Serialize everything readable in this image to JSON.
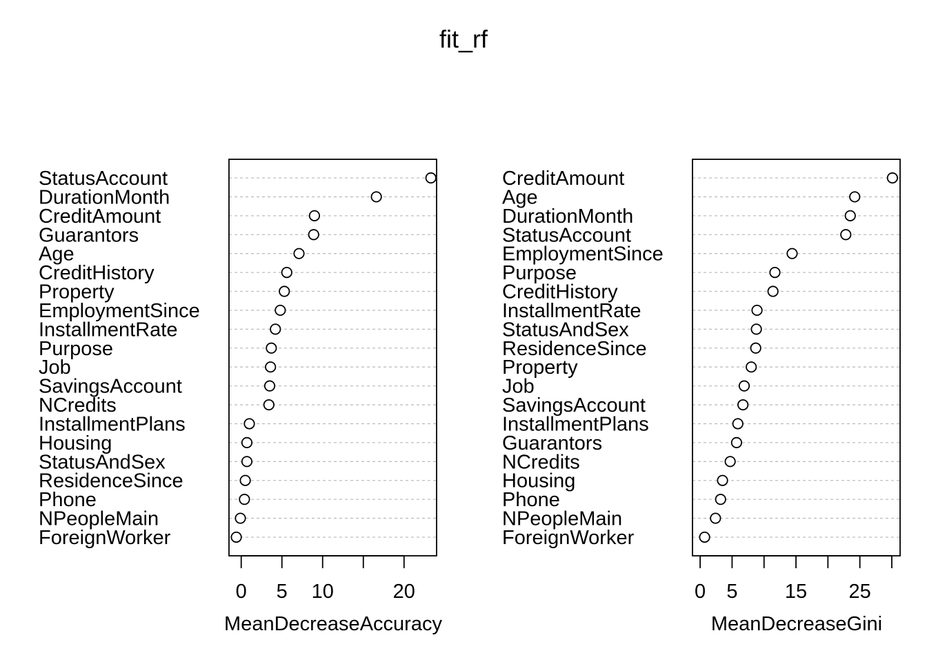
{
  "chart_data": {
    "type": "scatter",
    "title": "fit_rf",
    "panels": [
      {
        "xlabel": "MeanDecreaseAccuracy",
        "xticks": [
          0,
          5,
          10,
          15,
          20
        ],
        "xtick_labels": [
          "0",
          "5",
          "10",
          "",
          "20"
        ],
        "xlim": [
          -1.5,
          24
        ],
        "grid": true,
        "categories": [
          "StatusAccount",
          "DurationMonth",
          "CreditAmount",
          "Guarantors",
          "Age",
          "CreditHistory",
          "Property",
          "EmploymentSince",
          "InstallmentRate",
          "Purpose",
          "Job",
          "SavingsAccount",
          "NCredits",
          "InstallmentPlans",
          "Housing",
          "StatusAndSex",
          "ResidenceSince",
          "Phone",
          "NPeopleMain",
          "ForeignWorker"
        ],
        "values": [
          23.3,
          16.6,
          9.0,
          8.9,
          7.1,
          5.6,
          5.3,
          4.8,
          4.2,
          3.7,
          3.6,
          3.5,
          3.4,
          1.0,
          0.7,
          0.7,
          0.5,
          0.4,
          -0.1,
          -0.6
        ]
      },
      {
        "xlabel": "MeanDecreaseGini",
        "xticks": [
          0,
          5,
          10,
          15,
          20,
          25,
          30
        ],
        "xtick_labels": [
          "0",
          "5",
          "",
          "15",
          "",
          "25",
          ""
        ],
        "xlim": [
          -1.2,
          31.3
        ],
        "grid": true,
        "categories": [
          "CreditAmount",
          "Age",
          "DurationMonth",
          "StatusAccount",
          "EmploymentSince",
          "Purpose",
          "CreditHistory",
          "InstallmentRate",
          "StatusAndSex",
          "ResidenceSince",
          "Property",
          "Job",
          "SavingsAccount",
          "InstallmentPlans",
          "Guarantors",
          "NCredits",
          "Housing",
          "Phone",
          "NPeopleMain",
          "ForeignWorker"
        ],
        "values": [
          30.1,
          24.2,
          23.5,
          22.8,
          14.4,
          11.7,
          11.4,
          8.9,
          8.8,
          8.7,
          8.0,
          6.9,
          6.7,
          5.9,
          5.7,
          4.7,
          3.5,
          3.2,
          2.4,
          0.7
        ]
      }
    ]
  }
}
